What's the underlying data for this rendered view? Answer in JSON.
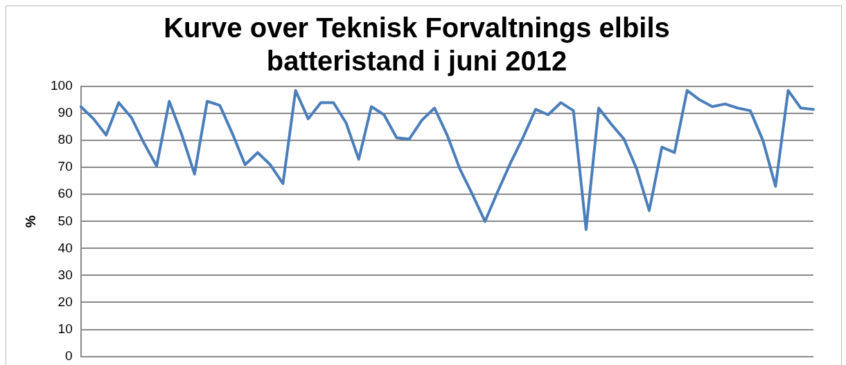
{
  "chart_data": {
    "type": "line",
    "title": [
      "Kurve over Teknisk Forvaltnings elbils",
      "batteristand i juni 2012"
    ],
    "ylabel": "%",
    "categories": [
      null,
      null,
      null,
      null,
      null,
      null,
      null,
      null,
      null,
      null,
      null,
      null,
      null,
      null,
      null,
      null,
      null,
      null,
      null,
      null,
      null,
      null,
      null,
      null,
      null,
      null,
      null,
      null,
      null,
      null,
      null,
      null,
      null,
      null,
      null,
      null,
      null,
      null,
      null,
      null,
      null,
      null,
      null,
      null,
      null,
      null,
      null,
      null,
      null,
      null,
      null,
      null,
      null,
      null,
      null,
      null,
      null,
      null,
      null
    ],
    "series": [
      {
        "color": "#4a7ebb",
        "values": [
          92.5,
          88,
          82,
          94,
          88.5,
          79,
          70.5,
          94.5,
          82,
          67.5,
          94.5,
          93,
          82.5,
          71,
          75.5,
          71,
          64,
          98.5,
          88,
          94,
          94,
          86.5,
          73,
          92.5,
          89.5,
          81,
          80.5,
          87.5,
          92,
          82,
          69.5,
          60,
          50,
          61,
          71.5,
          81,
          91.5,
          89.5,
          94,
          91,
          47,
          92,
          86,
          80.5,
          69.5,
          54,
          77.5,
          75.5,
          98.5,
          95,
          92.5,
          93.5,
          92,
          91,
          80,
          63,
          98.5,
          92,
          91.5
        ]
      }
    ],
    "ylim": [
      0,
      100
    ],
    "yticks": [
      0,
      10,
      20,
      30,
      40,
      50,
      60,
      70,
      80,
      90,
      100
    ],
    "grid": "y",
    "legend": false,
    "marker": "none",
    "line_style": "solid"
  }
}
